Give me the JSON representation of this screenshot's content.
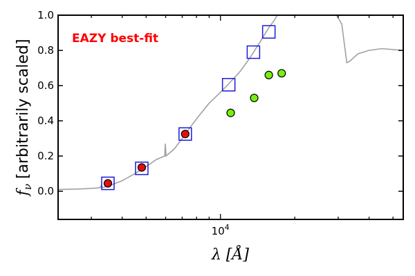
{
  "chart_data": {
    "type": "scatter",
    "annotation": "EAZY best-fit",
    "xlabel": "λ [Å]",
    "ylabel": "f_ν [arbitrarily scaled]",
    "xscale": "log",
    "xlim": [
      2200,
      55000
    ],
    "ylim": [
      -0.16,
      1.0
    ],
    "yticks": [
      0.0,
      0.2,
      0.4,
      0.6,
      0.8,
      1.0
    ],
    "ytick_labels": [
      "0.0",
      "0.2",
      "0.4",
      "0.6",
      "0.8",
      "1.0"
    ],
    "xtick_labels": [
      {
        "x": 10000,
        "base": "10",
        "exp": "4"
      }
    ],
    "grid": false,
    "colors": {
      "spectrum": "#a0a0a0",
      "model_box": "#1a1adc",
      "red_point": "#e01010",
      "green_point": "#77ee11",
      "annotation": "#ff0000"
    },
    "series": [
      {
        "marker": "open-square",
        "points": [
          {
            "x": 3500,
            "y": 0.045
          },
          {
            "x": 4800,
            "y": 0.13
          },
          {
            "x": 7200,
            "y": 0.325
          },
          {
            "x": 10800,
            "y": 0.605
          },
          {
            "x": 13600,
            "y": 0.79
          },
          {
            "x": 15700,
            "y": 0.905
          }
        ]
      },
      {
        "marker": "red-circle",
        "points": [
          {
            "x": 3500,
            "y": 0.045
          },
          {
            "x": 4800,
            "y": 0.135
          },
          {
            "x": 7200,
            "y": 0.325
          }
        ]
      },
      {
        "marker": "green-circle",
        "points": [
          {
            "x": 11000,
            "y": 0.445
          },
          {
            "x": 13700,
            "y": 0.53
          },
          {
            "x": 15700,
            "y": 0.66
          },
          {
            "x": 17700,
            "y": 0.67
          }
        ]
      },
      {
        "marker": "line",
        "points": [
          {
            "x": 2200,
            "y": 0.01
          },
          {
            "x": 2600,
            "y": 0.012
          },
          {
            "x": 3000,
            "y": 0.016
          },
          {
            "x": 3250,
            "y": 0.02
          },
          {
            "x": 3300,
            "y": 0.035
          },
          {
            "x": 3320,
            "y": 0.02
          },
          {
            "x": 3600,
            "y": 0.035
          },
          {
            "x": 4000,
            "y": 0.06
          },
          {
            "x": 4500,
            "y": 0.1
          },
          {
            "x": 5000,
            "y": 0.14
          },
          {
            "x": 5500,
            "y": 0.18
          },
          {
            "x": 5950,
            "y": 0.2
          },
          {
            "x": 5980,
            "y": 0.27
          },
          {
            "x": 6020,
            "y": 0.2
          },
          {
            "x": 6500,
            "y": 0.24
          },
          {
            "x": 7000,
            "y": 0.3
          },
          {
            "x": 7600,
            "y": 0.37
          },
          {
            "x": 8200,
            "y": 0.43
          },
          {
            "x": 9000,
            "y": 0.5
          },
          {
            "x": 9800,
            "y": 0.55
          },
          {
            "x": 10800,
            "y": 0.61
          },
          {
            "x": 12000,
            "y": 0.68
          },
          {
            "x": 13200,
            "y": 0.76
          },
          {
            "x": 14500,
            "y": 0.85
          },
          {
            "x": 15700,
            "y": 0.93
          },
          {
            "x": 16500,
            "y": 0.97
          },
          {
            "x": 17000,
            "y": 1.0
          },
          {
            "x": 29500,
            "y": 1.0
          },
          {
            "x": 31000,
            "y": 0.95
          },
          {
            "x": 32500,
            "y": 0.73
          },
          {
            "x": 33500,
            "y": 0.74
          },
          {
            "x": 36000,
            "y": 0.78
          },
          {
            "x": 40000,
            "y": 0.8
          },
          {
            "x": 45000,
            "y": 0.81
          },
          {
            "x": 50000,
            "y": 0.805
          },
          {
            "x": 55000,
            "y": 0.8
          }
        ]
      }
    ]
  }
}
